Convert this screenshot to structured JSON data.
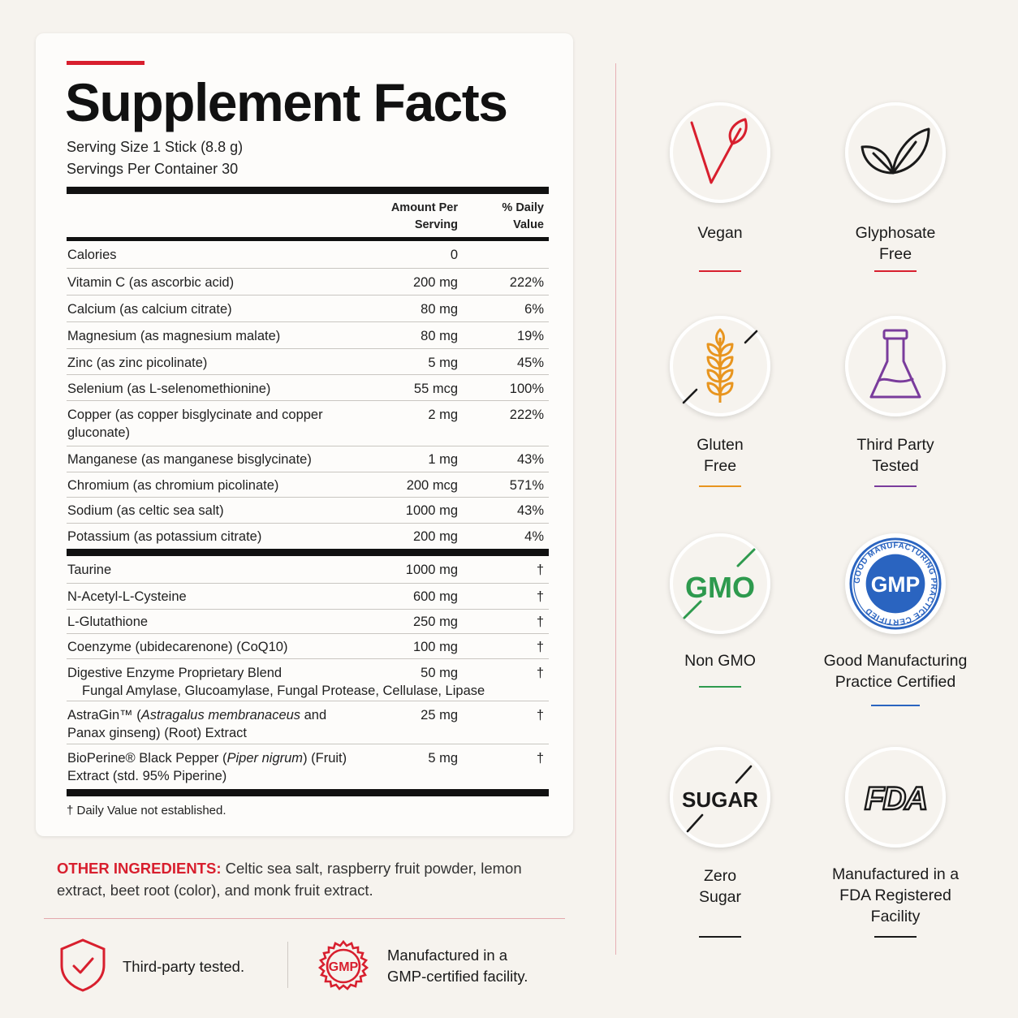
{
  "title": "Supplement Facts",
  "serving_size": "Serving Size 1 Stick (8.8 g)",
  "servings_per_container": "Servings Per Container 30",
  "header": {
    "amount_line1": "Amount Per",
    "amount_line2": "Serving",
    "dv_line1": "% Daily",
    "dv_line2": "Value"
  },
  "nutrients": [
    {
      "name": "Calories",
      "amount": "0",
      "dv": ""
    },
    {
      "name": "Vitamin C (as ascorbic acid)",
      "amount": "200 mg",
      "dv": "222%"
    },
    {
      "name": "Calcium (as calcium citrate)",
      "amount": "80 mg",
      "dv": "6%"
    },
    {
      "name": "Magnesium (as magnesium malate)",
      "amount": "80 mg",
      "dv": "19%"
    },
    {
      "name": "Zinc (as zinc picolinate)",
      "amount": "5 mg",
      "dv": "45%"
    },
    {
      "name": "Selenium (as L-selenomethionine)",
      "amount": "55 mcg",
      "dv": "100%"
    },
    {
      "name": "Copper (as copper bisglycinate and copper gluconate)",
      "amount": "2 mg",
      "dv": "222%"
    },
    {
      "name": "Manganese (as manganese bisglycinate)",
      "amount": "1 mg",
      "dv": "43%"
    },
    {
      "name": "Chromium (as chromium picolinate)",
      "amount": "200 mcg",
      "dv": "571%"
    },
    {
      "name": "Sodium (as celtic sea salt)",
      "amount": "1000 mg",
      "dv": "43%"
    },
    {
      "name": "Potassium (as potassium citrate)",
      "amount": "200 mg",
      "dv": "4%"
    }
  ],
  "other_nutrients": [
    {
      "name": "Taurine",
      "amount": "1000 mg",
      "dv": "†"
    },
    {
      "name": "N-Acetyl-L-Cysteine",
      "amount": "600 mg",
      "dv": "†"
    },
    {
      "name": "L-Glutathione",
      "amount": "250 mg",
      "dv": "†"
    },
    {
      "name": "Coenzyme (ubidecarenone) (CoQ10)",
      "amount": "100 mg",
      "dv": "†"
    },
    {
      "name": "Digestive Enzyme Proprietary Blend",
      "sub": "Fungal Amylase, Glucoamylase, Fungal Protease, Cellulase, Lipase",
      "amount": "50 mg",
      "dv": "†"
    },
    {
      "name_parts": [
        "AstraGin™ (",
        "Astragalus membranaceus",
        " and Panax ginseng) (Root) Extract"
      ],
      "amount": "25 mg",
      "dv": "†"
    },
    {
      "name_parts": [
        "BioPerine® Black Pepper (",
        "Piper nigrum",
        ") (Fruit) Extract (std. 95% Piperine)"
      ],
      "amount": "5 mg",
      "dv": "†"
    }
  ],
  "footnote": "† Daily Value not established.",
  "other_ingredients": {
    "label": "OTHER INGREDIENTS:",
    "text": " Celtic sea salt, raspberry fruit powder, lemon extract, beet root (color), and monk fruit extract."
  },
  "bottom": {
    "third_party": "Third-party tested.",
    "gmp_icon_text": "GMP",
    "gmp_line1": "Manufactured in a",
    "gmp_line2": "GMP-certified facility."
  },
  "badges": [
    {
      "id": "vegan",
      "icon": "vegan-icon",
      "lines": [
        "Vegan"
      ],
      "color": "#d81f2e",
      "bg": "#fce4df"
    },
    {
      "id": "glyphosate",
      "icon": "leaf-icon",
      "lines": [
        "Glyphosate",
        "Free"
      ],
      "color": "#d81f2e",
      "bg": "#e6efdf"
    },
    {
      "id": "gluten",
      "icon": "wheat-icon",
      "lines": [
        "Gluten",
        "Free"
      ],
      "color": "#e8951f",
      "bg": "#fbeedb"
    },
    {
      "id": "third-party",
      "icon": "flask-icon",
      "lines": [
        "Third Party",
        "Tested"
      ],
      "color": "#7a3c9c",
      "bg": "#ece4ee"
    },
    {
      "id": "non-gmo",
      "icon": "gmo-icon",
      "icon_text": "GMO",
      "lines": [
        "Non GMO"
      ],
      "color": "#2e9a4e",
      "bg": "#e5efdf"
    },
    {
      "id": "gmp",
      "icon": "gmp-seal-icon",
      "icon_text": "GMP",
      "seal_text": "GOOD MANUFACTURING PRACTICE CERTIFIED",
      "lines": [
        "Good Manufacturing",
        "Practice Certified"
      ],
      "color": "#2a64c0",
      "bg": "#ffffff"
    },
    {
      "id": "sugar",
      "icon": "sugar-icon",
      "icon_text": "SUGAR",
      "lines": [
        "Zero",
        "Sugar"
      ],
      "color": "#1a1a1a",
      "bg": "#fce4df"
    },
    {
      "id": "fda",
      "icon": "fda-icon",
      "icon_text": "FDA",
      "lines": [
        "Manufactured in a",
        "FDA Registered",
        "Facility"
      ],
      "color": "#1a1a1a",
      "bg": "#ebe7ea"
    }
  ]
}
